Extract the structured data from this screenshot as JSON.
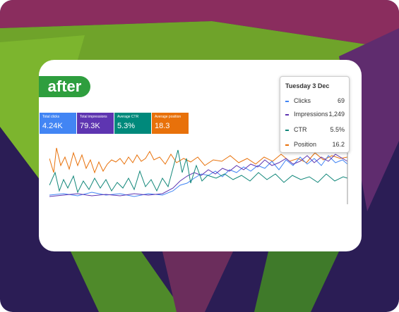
{
  "badge": "after",
  "metrics": [
    {
      "label": "Total clicks",
      "value": "4.24K"
    },
    {
      "label": "Total impressions",
      "value": "79.3K"
    },
    {
      "label": "Average CTR",
      "value": "5.3%"
    },
    {
      "label": "Average position",
      "value": "18.3"
    }
  ],
  "tooltip": {
    "date": "Tuesday 3 Dec",
    "rows": [
      {
        "name": "Clicks",
        "value": "69"
      },
      {
        "name": "Impressions",
        "value": "1,249"
      },
      {
        "name": "CTR",
        "value": "5.5%"
      },
      {
        "name": "Position",
        "value": "16.2"
      }
    ]
  }
}
